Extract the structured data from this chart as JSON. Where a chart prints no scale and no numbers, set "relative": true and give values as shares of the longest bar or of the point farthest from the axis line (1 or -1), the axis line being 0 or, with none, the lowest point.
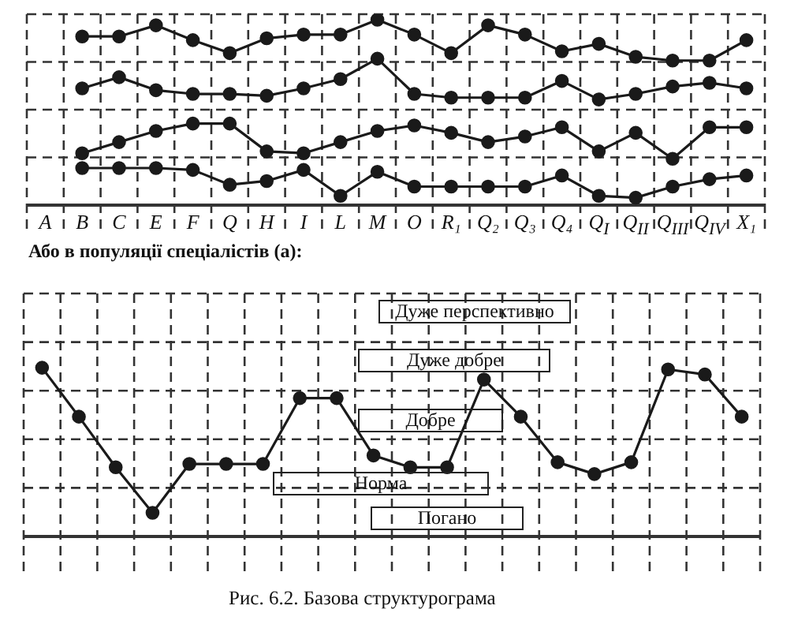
{
  "chart_data": [
    {
      "type": "line",
      "categories": [
        "A",
        "B",
        "C",
        "E",
        "F",
        "Q",
        "H",
        "I",
        "L",
        "M",
        "O",
        "R₁",
        "Q₂",
        "Q₃",
        "Q₄",
        "Q$_{I}$",
        "Q$_{II}$",
        "Q$_{III}$",
        "Q$_{IV}$",
        "X₁"
      ],
      "relative": true,
      "marker": "circle",
      "grid": true,
      "legend": false,
      "series": [
        {
          "color": "#1a1a1a",
          "values": [
            null,
            0.91,
            0.91,
            0.97,
            0.89,
            0.82,
            0.9,
            0.92,
            0.92,
            1,
            0.92,
            0.82,
            0.97,
            0.92,
            0.83,
            0.87,
            0.8,
            0.78,
            0.78,
            0.89
          ]
        },
        {
          "color": "#1a1a1a",
          "values": [
            null,
            0.63,
            0.69,
            0.62,
            0.6,
            0.6,
            0.59,
            0.63,
            0.68,
            0.79,
            0.6,
            0.58,
            0.58,
            0.58,
            0.67,
            0.57,
            0.6,
            0.64,
            0.66,
            0.63
          ]
        },
        {
          "color": "#1a1a1a",
          "values": [
            null,
            0.28,
            0.34,
            0.4,
            0.44,
            0.44,
            0.29,
            0.28,
            0.34,
            0.4,
            0.43,
            0.39,
            0.34,
            0.37,
            0.42,
            0.29,
            0.39,
            0.25,
            0.42,
            0.42
          ]
        },
        {
          "color": "#1a1a1a",
          "values": [
            null,
            0.2,
            0.2,
            0.2,
            0.19,
            0.11,
            0.13,
            0.19,
            0.05,
            0.18,
            0.1,
            0.1,
            0.1,
            0.1,
            0.16,
            0.05,
            0.04,
            0.1,
            0.14,
            0.16
          ]
        }
      ]
    },
    {
      "type": "line",
      "title": "Або в популяції спеціалістів (а):",
      "categories": [
        null,
        null,
        null,
        null,
        null,
        null,
        null,
        null,
        null,
        null,
        null,
        null,
        null,
        null,
        null,
        null,
        null,
        null,
        null,
        null
      ],
      "relative": true,
      "marker": "circle",
      "grid": true,
      "legend": false,
      "series": [
        {
          "color": "#1a1a1a",
          "values": [
            1,
            0.71,
            0.41,
            0.14,
            0.43,
            0.43,
            0.43,
            0.82,
            0.82,
            0.48,
            0.41,
            0.41,
            0.93,
            0.71,
            0.44,
            0.37,
            0.44,
            0.99,
            0.96,
            0.71
          ]
        }
      ],
      "annotations": [
        "Дуже перспективно",
        "Дуже добре",
        "Добре",
        "Норма",
        "Погано",
        "Рис. 6.2. Базова структурограма"
      ]
    }
  ]
}
